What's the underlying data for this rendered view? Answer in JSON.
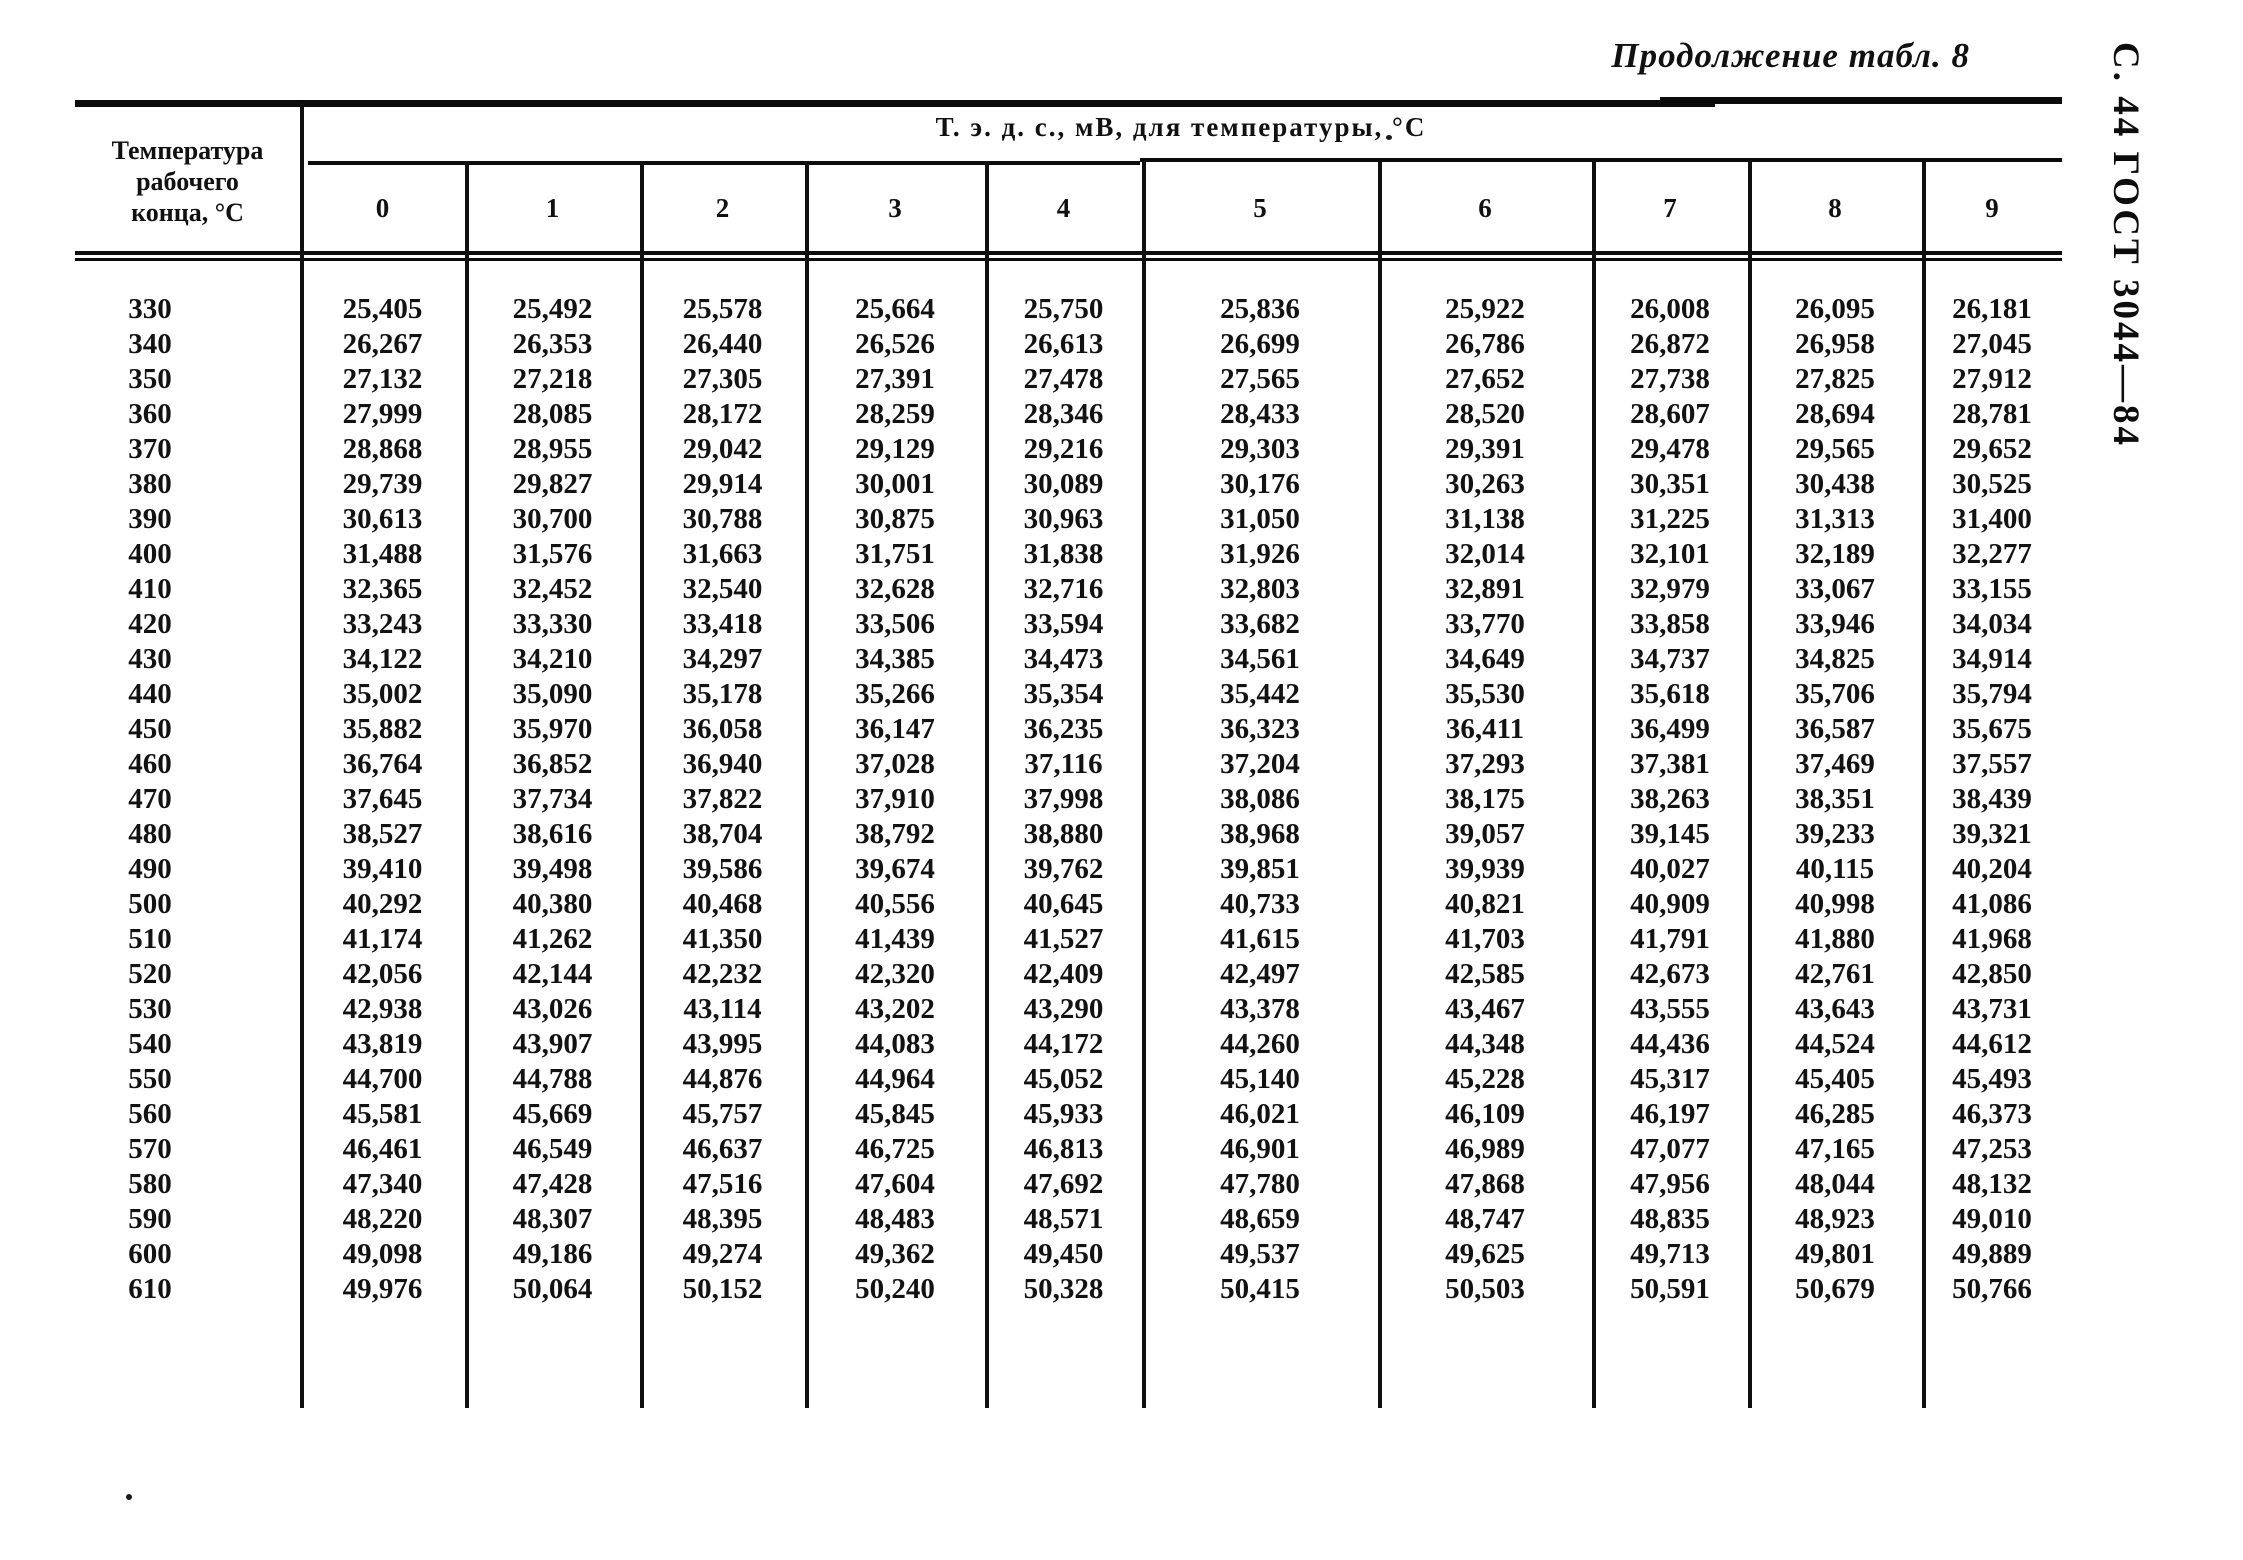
{
  "page": {
    "continuation_label": "Продолжение табл. 8",
    "side_label": "С. 44 ГОСТ 3044—84"
  },
  "table": {
    "corner_header": [
      "Температура",
      "рабочего",
      "конца, °С"
    ],
    "span_header": "Т. э. д. с., мВ, для температуры, °С",
    "col_headers": [
      "0",
      "1",
      "2",
      "3",
      "4",
      "5",
      "6",
      "7",
      "8",
      "9"
    ],
    "rows": [
      {
        "t": "330",
        "v": [
          "25,405",
          "25,492",
          "25,578",
          "25,664",
          "25,750",
          "25,836",
          "25,922",
          "26,008",
          "26,095",
          "26,181"
        ]
      },
      {
        "t": "340",
        "v": [
          "26,267",
          "26,353",
          "26,440",
          "26,526",
          "26,613",
          "26,699",
          "26,786",
          "26,872",
          "26,958",
          "27,045"
        ]
      },
      {
        "t": "350",
        "v": [
          "27,132",
          "27,218",
          "27,305",
          "27,391",
          "27,478",
          "27,565",
          "27,652",
          "27,738",
          "27,825",
          "27,912"
        ]
      },
      {
        "t": "360",
        "v": [
          "27,999",
          "28,085",
          "28,172",
          "28,259",
          "28,346",
          "28,433",
          "28,520",
          "28,607",
          "28,694",
          "28,781"
        ]
      },
      {
        "t": "370",
        "v": [
          "28,868",
          "28,955",
          "29,042",
          "29,129",
          "29,216",
          "29,303",
          "29,391",
          "29,478",
          "29,565",
          "29,652"
        ]
      },
      {
        "t": "380",
        "v": [
          "29,739",
          "29,827",
          "29,914",
          "30,001",
          "30,089",
          "30,176",
          "30,263",
          "30,351",
          "30,438",
          "30,525"
        ]
      },
      {
        "t": "390",
        "v": [
          "30,613",
          "30,700",
          "30,788",
          "30,875",
          "30,963",
          "31,050",
          "31,138",
          "31,225",
          "31,313",
          "31,400"
        ]
      },
      {
        "t": "400",
        "v": [
          "31,488",
          "31,576",
          "31,663",
          "31,751",
          "31,838",
          "31,926",
          "32,014",
          "32,101",
          "32,189",
          "32,277"
        ]
      },
      {
        "t": "410",
        "v": [
          "32,365",
          "32,452",
          "32,540",
          "32,628",
          "32,716",
          "32,803",
          "32,891",
          "32,979",
          "33,067",
          "33,155"
        ]
      },
      {
        "t": "420",
        "v": [
          "33,243",
          "33,330",
          "33,418",
          "33,506",
          "33,594",
          "33,682",
          "33,770",
          "33,858",
          "33,946",
          "34,034"
        ]
      },
      {
        "t": "430",
        "v": [
          "34,122",
          "34,210",
          "34,297",
          "34,385",
          "34,473",
          "34,561",
          "34,649",
          "34,737",
          "34,825",
          "34,914"
        ]
      },
      {
        "t": "440",
        "v": [
          "35,002",
          "35,090",
          "35,178",
          "35,266",
          "35,354",
          "35,442",
          "35,530",
          "35,618",
          "35,706",
          "35,794"
        ]
      },
      {
        "t": "450",
        "v": [
          "35,882",
          "35,970",
          "36,058",
          "36,147",
          "36,235",
          "36,323",
          "36,411",
          "36,499",
          "36,587",
          "35,675"
        ]
      },
      {
        "t": "460",
        "v": [
          "36,764",
          "36,852",
          "36,940",
          "37,028",
          "37,116",
          "37,204",
          "37,293",
          "37,381",
          "37,469",
          "37,557"
        ]
      },
      {
        "t": "470",
        "v": [
          "37,645",
          "37,734",
          "37,822",
          "37,910",
          "37,998",
          "38,086",
          "38,175",
          "38,263",
          "38,351",
          "38,439"
        ]
      },
      {
        "t": "480",
        "v": [
          "38,527",
          "38,616",
          "38,704",
          "38,792",
          "38,880",
          "38,968",
          "39,057",
          "39,145",
          "39,233",
          "39,321"
        ]
      },
      {
        "t": "490",
        "v": [
          "39,410",
          "39,498",
          "39,586",
          "39,674",
          "39,762",
          "39,851",
          "39,939",
          "40,027",
          "40,115",
          "40,204"
        ]
      },
      {
        "t": "500",
        "v": [
          "40,292",
          "40,380",
          "40,468",
          "40,556",
          "40,645",
          "40,733",
          "40,821",
          "40,909",
          "40,998",
          "41,086"
        ]
      },
      {
        "t": "510",
        "v": [
          "41,174",
          "41,262",
          "41,350",
          "41,439",
          "41,527",
          "41,615",
          "41,703",
          "41,791",
          "41,880",
          "41,968"
        ]
      },
      {
        "t": "520",
        "v": [
          "42,056",
          "42,144",
          "42,232",
          "42,320",
          "42,409",
          "42,497",
          "42,585",
          "42,673",
          "42,761",
          "42,850"
        ]
      },
      {
        "t": "530",
        "v": [
          "42,938",
          "43,026",
          "43,114",
          "43,202",
          "43,290",
          "43,378",
          "43,467",
          "43,555",
          "43,643",
          "43,731"
        ]
      },
      {
        "t": "540",
        "v": [
          "43,819",
          "43,907",
          "43,995",
          "44,083",
          "44,172",
          "44,260",
          "44,348",
          "44,436",
          "44,524",
          "44,612"
        ]
      },
      {
        "t": "550",
        "v": [
          "44,700",
          "44,788",
          "44,876",
          "44,964",
          "45,052",
          "45,140",
          "45,228",
          "45,317",
          "45,405",
          "45,493"
        ]
      },
      {
        "t": "560",
        "v": [
          "45,581",
          "45,669",
          "45,757",
          "45,845",
          "45,933",
          "46,021",
          "46,109",
          "46,197",
          "46,285",
          "46,373"
        ]
      },
      {
        "t": "570",
        "v": [
          "46,461",
          "46,549",
          "46,637",
          "46,725",
          "46,813",
          "46,901",
          "46,989",
          "47,077",
          "47,165",
          "47,253"
        ]
      },
      {
        "t": "580",
        "v": [
          "47,340",
          "47,428",
          "47,516",
          "47,604",
          "47,692",
          "47,780",
          "47,868",
          "47,956",
          "48,044",
          "48,132"
        ]
      },
      {
        "t": "590",
        "v": [
          "48,220",
          "48,307",
          "48,395",
          "48,483",
          "48,571",
          "48,659",
          "48,747",
          "48,835",
          "48,923",
          "49,010"
        ]
      },
      {
        "t": "600",
        "v": [
          "49,098",
          "49,186",
          "49,274",
          "49,362",
          "49,450",
          "49,537",
          "49,625",
          "49,713",
          "49,801",
          "49,889"
        ]
      },
      {
        "t": "610",
        "v": [
          "49,976",
          "50,064",
          "50,152",
          "50,240",
          "50,328",
          "50,415",
          "50,503",
          "50,591",
          "50,679",
          "50,766"
        ]
      }
    ]
  }
}
